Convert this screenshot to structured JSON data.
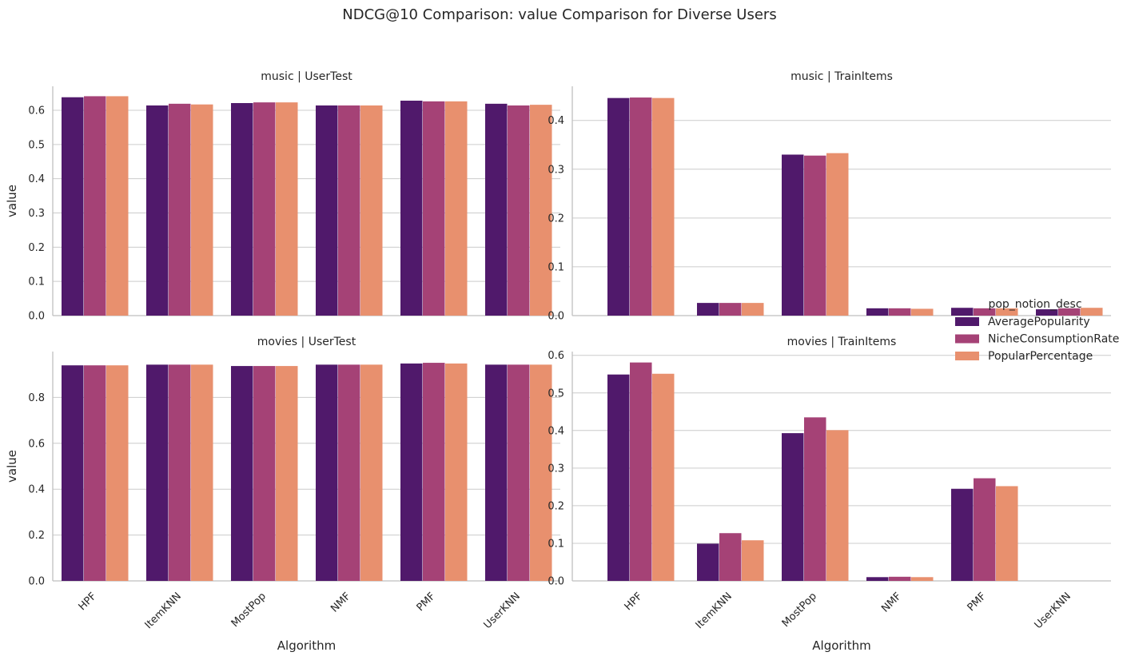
{
  "chart_data": {
    "type": "bar",
    "title": "NDCG@10 Comparison: value Comparison for Diverse Users",
    "xlabel": "Algorithm",
    "ylabel": "value",
    "categories": [
      "HPF",
      "ItemKNN",
      "MostPop",
      "NMF",
      "PMF",
      "UserKNN"
    ],
    "legend": {
      "title": "pop_notion_desc",
      "placement": "center-right",
      "entries": [
        "AveragePopularity",
        "NicheConsumptionRate",
        "PopularPercentage"
      ]
    },
    "colors": [
      "#50196b",
      "#a54276",
      "#e8906e"
    ],
    "grid": "horizontal",
    "panels": [
      {
        "title": "music | UserTest",
        "ylim": [
          0,
          0.67
        ],
        "yticks": [
          "0.0",
          "0.1",
          "0.2",
          "0.3",
          "0.4",
          "0.5",
          "0.6"
        ],
        "series": [
          {
            "name": "AveragePopularity",
            "values": [
              0.638,
              0.614,
              0.621,
              0.614,
              0.628,
              0.619
            ]
          },
          {
            "name": "NicheConsumptionRate",
            "values": [
              0.641,
              0.619,
              0.623,
              0.614,
              0.626,
              0.614
            ]
          },
          {
            "name": "PopularPercentage",
            "values": [
              0.641,
              0.617,
              0.623,
              0.614,
              0.626,
              0.616
            ]
          }
        ]
      },
      {
        "title": "music | TrainItems",
        "ylim": [
          0,
          0.47
        ],
        "yticks": [
          "0.0",
          "0.1",
          "0.2",
          "0.3",
          "0.4"
        ],
        "series": [
          {
            "name": "AveragePopularity",
            "values": [
              0.446,
              0.026,
              0.33,
              0.015,
              0.016,
              0.013
            ]
          },
          {
            "name": "NicheConsumptionRate",
            "values": [
              0.447,
              0.026,
              0.328,
              0.015,
              0.015,
              0.015
            ]
          },
          {
            "name": "PopularPercentage",
            "values": [
              0.446,
              0.026,
              0.333,
              0.014,
              0.015,
              0.016
            ]
          }
        ]
      },
      {
        "title": "movies | UserTest",
        "ylim": [
          0,
          1.0
        ],
        "yticks": [
          "0.0",
          "0.2",
          "0.4",
          "0.6",
          "0.8"
        ],
        "series": [
          {
            "name": "AveragePopularity",
            "values": [
              0.94,
              0.943,
              0.937,
              0.943,
              0.948,
              0.943
            ]
          },
          {
            "name": "NicheConsumptionRate",
            "values": [
              0.94,
              0.943,
              0.937,
              0.943,
              0.951,
              0.943
            ]
          },
          {
            "name": "PopularPercentage",
            "values": [
              0.94,
              0.943,
              0.937,
              0.943,
              0.948,
              0.943
            ]
          }
        ]
      },
      {
        "title": "movies | TrainItems",
        "ylim": [
          0,
          0.61
        ],
        "yticks": [
          "0.0",
          "0.1",
          "0.2",
          "0.3",
          "0.4",
          "0.5",
          "0.6"
        ],
        "series": [
          {
            "name": "AveragePopularity",
            "values": [
              0.549,
              0.099,
              0.393,
              0.01,
              0.245,
              0.0
            ]
          },
          {
            "name": "NicheConsumptionRate",
            "values": [
              0.581,
              0.127,
              0.435,
              0.011,
              0.273,
              0.0
            ]
          },
          {
            "name": "PopularPercentage",
            "values": [
              0.551,
              0.108,
              0.401,
              0.01,
              0.252,
              0.0
            ]
          }
        ]
      }
    ]
  }
}
